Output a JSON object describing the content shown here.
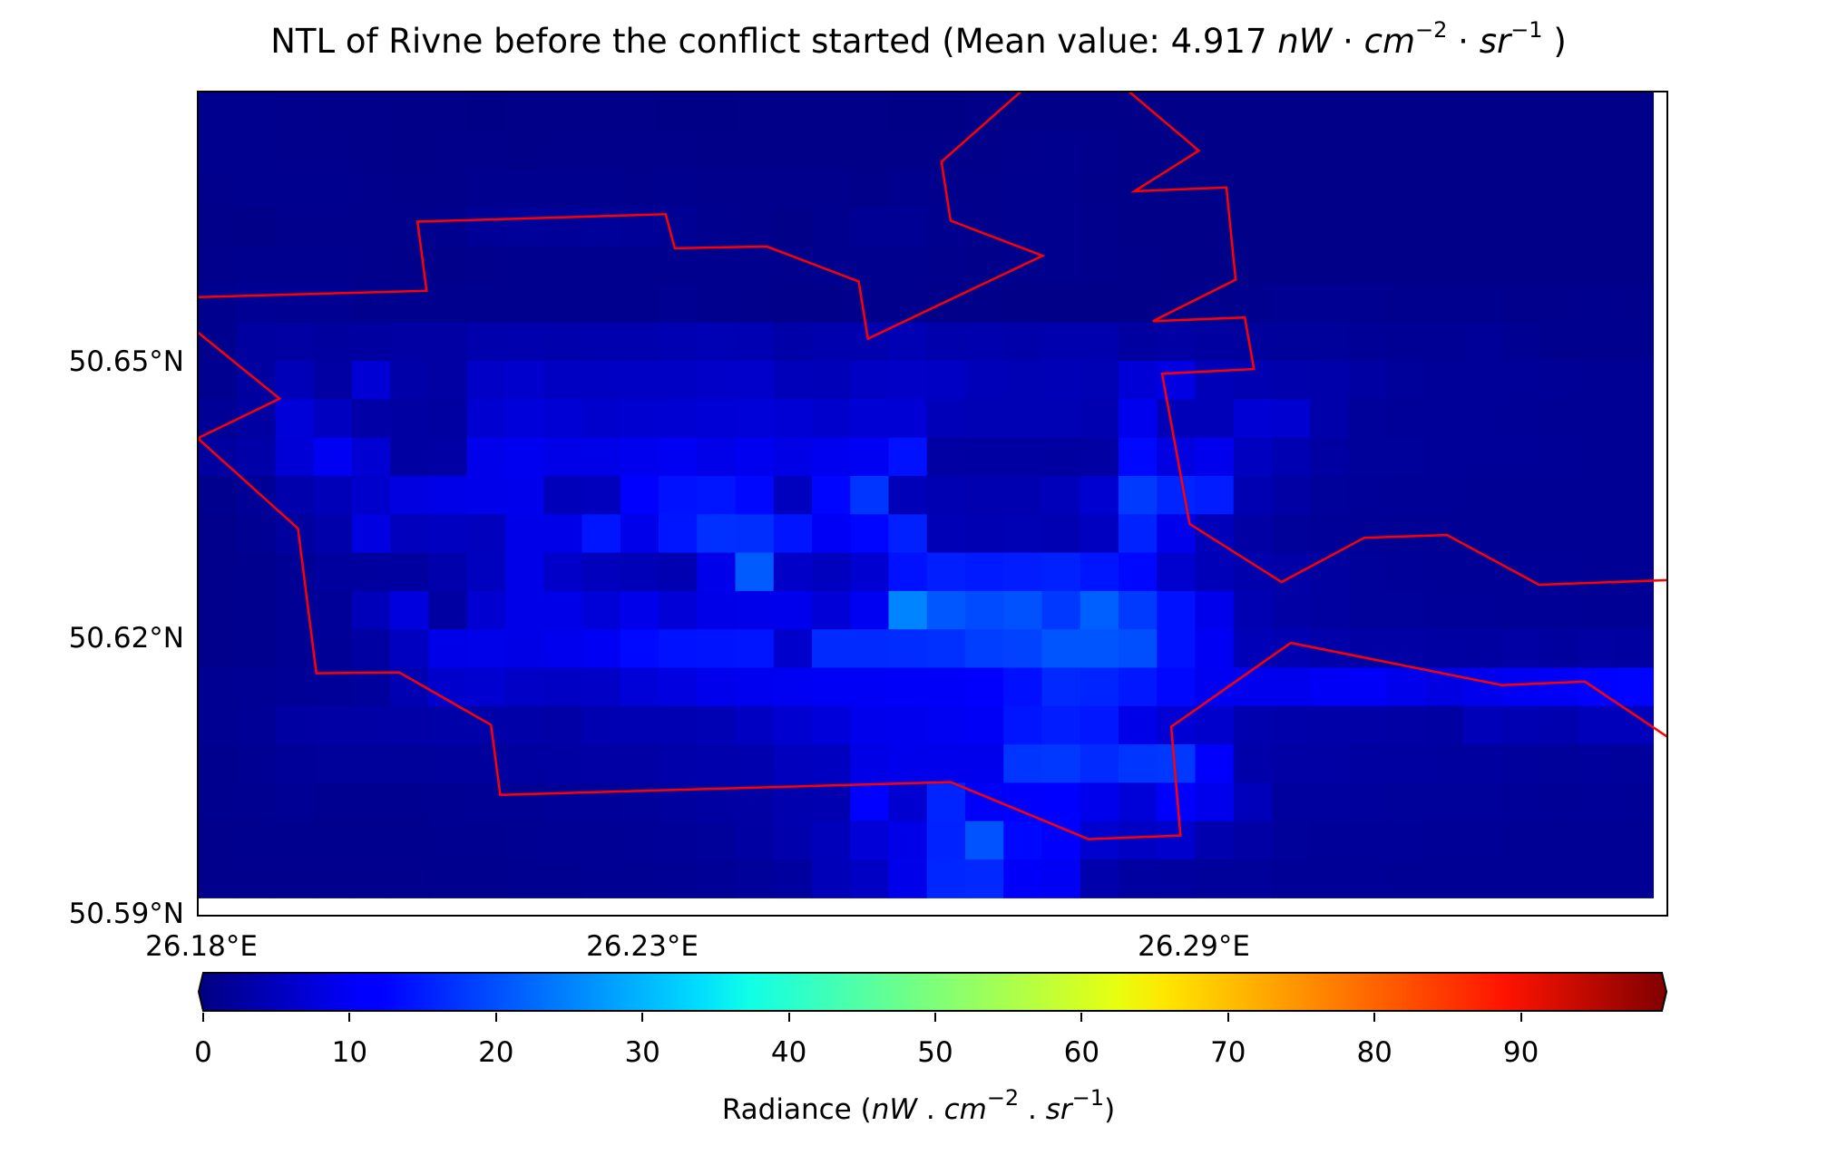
{
  "title": {
    "prefix": "NTL of Rivne before the conflict started (Mean value: 4.917 ",
    "unit_nW": "nW",
    "unit_dot1": " · ",
    "unit_cm": "cm",
    "unit_cm_exp": "−2",
    "unit_dot2": " · ",
    "unit_sr": "sr",
    "unit_sr_exp": "−1",
    "suffix": " )"
  },
  "map": {
    "y_ticks": [
      "50.65°N",
      "50.62°N",
      "50.59°N"
    ],
    "x_ticks": [
      "26.18°E",
      "26.23°E",
      "26.29°E"
    ],
    "boundary_color": "#ff0000",
    "colormap": "jet",
    "pixel_values": [
      [
        1.5,
        1.5,
        1.2,
        1.0,
        1.0,
        0.8,
        0.8,
        0.7,
        0.8,
        0.8,
        0.8,
        0.8,
        0.7,
        0.7,
        0.8,
        0.8,
        0.8,
        0.8,
        0.7,
        0.7,
        0.8,
        0.8,
        0.8,
        0.9,
        0.9,
        0.8,
        0.8,
        0.8,
        0.8,
        0.8,
        0.8,
        0.8,
        0.8,
        0.8,
        0.8,
        0.8,
        0.8,
        0.8
      ],
      [
        1.5,
        1.5,
        1.3,
        1.2,
        1.0,
        0.8,
        1.0,
        1.0,
        0.9,
        1.0,
        1.0,
        1.0,
        1.0,
        0.9,
        0.9,
        0.8,
        0.8,
        0.8,
        0.9,
        0.9,
        1.0,
        1.2,
        1.5,
        1.2,
        0.9,
        0.8,
        0.8,
        0.8,
        0.8,
        0.8,
        0.8,
        0.8,
        0.8,
        0.8,
        0.8,
        0.8,
        0.8,
        0.8
      ],
      [
        1.3,
        1.5,
        1.5,
        1.5,
        1.2,
        1.0,
        1.0,
        1.4,
        1.4,
        1.4,
        1.4,
        1.3,
        1.5,
        1.2,
        1.2,
        1.2,
        1.2,
        1.0,
        1.5,
        1.2,
        1.2,
        1.5,
        1.5,
        1.0,
        0.9,
        0.8,
        0.8,
        0.8,
        0.8,
        0.8,
        0.8,
        0.8,
        0.8,
        0.8,
        0.8,
        0.8,
        0.8,
        0.8
      ],
      [
        1.0,
        0.8,
        1.2,
        1.2,
        1.2,
        1.2,
        1.5,
        2.5,
        2.6,
        2.5,
        2.7,
        2.4,
        2.0,
        1.5,
        1.2,
        0.8,
        1.5,
        2.0,
        2.1,
        1.5,
        1.2,
        1.5,
        1.4,
        1.2,
        0.9,
        0.8,
        0.8,
        0.8,
        0.8,
        0.8,
        0.8,
        0.8,
        0.8,
        0.8,
        0.8,
        0.8,
        0.8,
        0.8
      ],
      [
        1.2,
        1.5,
        1.5,
        1.5,
        1.2,
        1.0,
        1.0,
        1.2,
        1.5,
        1.5,
        1.5,
        1.5,
        1.5,
        1.5,
        1.5,
        1.2,
        1.5,
        1.5,
        1.5,
        1.2,
        1.0,
        1.2,
        1.5,
        1.2,
        1.0,
        0.8,
        0.8,
        0.8,
        0.8,
        0.8,
        0.8,
        0.8,
        0.8,
        0.8,
        0.8,
        0.8,
        0.8,
        0.8
      ],
      [
        1.5,
        2.0,
        1.8,
        1.8,
        1.5,
        1.5,
        1.5,
        1.5,
        1.5,
        1.5,
        1.5,
        1.5,
        1.8,
        1.5,
        1.2,
        1.0,
        1.0,
        1.2,
        1.2,
        1.0,
        1.0,
        0.9,
        0.9,
        0.9,
        0.9,
        1.0,
        1.2,
        1.4,
        1.8,
        1.8,
        1.6,
        1.5,
        1.5,
        1.5,
        1.2,
        1.2,
        1.5,
        1.2
      ],
      [
        1.5,
        3.2,
        3.5,
        3.0,
        3.2,
        3.5,
        3.5,
        4.5,
        4.7,
        4.4,
        4.6,
        4.6,
        5.0,
        5.2,
        5.0,
        4.0,
        4.6,
        4.6,
        5.2,
        4.5,
        4.6,
        4.2,
        4.6,
        4.6,
        3.2,
        3.6,
        3.2,
        2.8,
        2.6,
        2.6,
        2.2,
        2.0,
        2.0,
        2.4,
        1.8,
        1.5,
        1.5,
        1.5
      ],
      [
        1.6,
        3.3,
        5.5,
        3.5,
        8.4,
        4.0,
        3.5,
        7.0,
        7.5,
        6.6,
        6.5,
        6.7,
        6.7,
        7.2,
        7.3,
        5.8,
        5.6,
        6.7,
        6.9,
        6.7,
        5.5,
        5.2,
        5.4,
        5.2,
        8.5,
        9.8,
        5.5,
        5.0,
        4.4,
        4.3,
        3.4,
        2.6,
        2.4,
        2.4,
        2.5,
        2.3,
        2.0,
        2.0
      ],
      [
        2.2,
        3.4,
        8.8,
        6.3,
        3.8,
        3.4,
        3.2,
        8.0,
        9.0,
        8.3,
        7.6,
        8.0,
        8.2,
        8.5,
        8.8,
        8.3,
        7.5,
        8.3,
        8.3,
        5.6,
        5.2,
        5.2,
        5.2,
        4.8,
        10.8,
        5.6,
        5.6,
        8.3,
        8.0,
        4.2,
        2.6,
        2.4,
        2.4,
        2.4,
        2.3,
        2.0,
        2.0,
        2.0
      ],
      [
        3.2,
        4.0,
        8.5,
        11.3,
        8.2,
        3.4,
        3.6,
        10.4,
        11.0,
        10.2,
        10.2,
        10.8,
        11.2,
        10.3,
        11.1,
        10.0,
        11.1,
        11.2,
        14.2,
        3.5,
        3.4,
        3.4,
        3.3,
        3.5,
        13.2,
        9.5,
        10.8,
        6.3,
        5.0,
        3.4,
        2.6,
        2.6,
        2.4,
        2.4,
        2.4,
        2.2,
        2.0,
        2.0
      ],
      [
        1.4,
        2.3,
        4.4,
        5.6,
        7.6,
        9.5,
        10.2,
        10.4,
        10.6,
        5.8,
        6.0,
        12.4,
        14.2,
        14.6,
        13.2,
        6.2,
        13.0,
        17.6,
        5.5,
        5.0,
        4.8,
        4.8,
        5.8,
        8.0,
        18.2,
        16.0,
        15.2,
        5.0,
        3.6,
        2.6,
        2.4,
        2.2,
        2.2,
        2.0,
        2.0,
        2.0,
        2.0,
        2.0
      ],
      [
        1.2,
        1.8,
        3.0,
        4.3,
        9.5,
        6.0,
        6.3,
        6.0,
        10.2,
        10.2,
        14.6,
        10.5,
        14.6,
        17.2,
        17.0,
        14.5,
        11.6,
        13.0,
        15.6,
        5.3,
        5.0,
        5.2,
        5.0,
        6.3,
        15.8,
        10.6,
        5.8,
        3.6,
        2.6,
        2.4,
        2.2,
        2.0,
        2.0,
        2.0,
        2.0,
        2.0,
        2.0,
        2.0
      ],
      [
        1.2,
        1.5,
        2.0,
        3.0,
        3.0,
        3.2,
        4.5,
        6.2,
        10.2,
        7.2,
        6.0,
        5.5,
        5.0,
        10.4,
        21.4,
        7.2,
        6.2,
        8.0,
        14.2,
        15.4,
        15.0,
        15.2,
        15.6,
        14.6,
        13.2,
        7.8,
        5.5,
        4.5,
        3.8,
        3.2,
        2.6,
        2.4,
        2.2,
        2.2,
        2.2,
        2.2,
        2.0,
        2.0
      ],
      [
        1.2,
        1.5,
        2.0,
        2.4,
        5.8,
        9.4,
        3.4,
        8.0,
        10.2,
        10.2,
        8.8,
        10.5,
        8.6,
        10.2,
        10.4,
        10.6,
        8.6,
        11.2,
        25.4,
        21.0,
        19.8,
        20.4,
        18.0,
        21.8,
        18.2,
        14.2,
        10.6,
        5.0,
        3.6,
        3.2,
        2.6,
        2.6,
        2.4,
        2.4,
        2.2,
        2.2,
        2.0,
        2.0
      ],
      [
        1.2,
        1.4,
        2.0,
        2.2,
        3.4,
        6.3,
        10.2,
        10.3,
        10.0,
        10.8,
        11.4,
        13.4,
        14.2,
        14.4,
        14.6,
        7.6,
        16.6,
        16.6,
        16.8,
        17.2,
        18.6,
        19.0,
        20.8,
        20.8,
        20.2,
        14.2,
        11.4,
        5.6,
        5.0,
        4.2,
        3.6,
        3.6,
        3.4,
        3.2,
        3.6,
        3.0,
        3.5,
        3.2
      ],
      [
        1.8,
        2.0,
        2.2,
        2.4,
        2.8,
        5.0,
        7.6,
        8.0,
        7.0,
        6.8,
        7.0,
        8.8,
        9.6,
        10.6,
        11.0,
        11.2,
        11.6,
        11.6,
        11.8,
        12.0,
        12.2,
        14.0,
        16.4,
        16.0,
        14.8,
        13.2,
        11.2,
        10.8,
        10.8,
        11.6,
        12.0,
        10.6,
        9.8,
        10.6,
        11.2,
        11.6,
        12.6,
        12.8
      ],
      [
        1.8,
        2.2,
        3.4,
        3.6,
        3.6,
        3.8,
        4.0,
        4.0,
        4.0,
        3.8,
        4.8,
        5.0,
        5.0,
        5.2,
        6.6,
        8.0,
        9.0,
        10.6,
        10.8,
        11.2,
        11.6,
        14.6,
        15.2,
        14.8,
        10.2,
        8.4,
        7.6,
        4.6,
        4.2,
        4.0,
        3.8,
        3.6,
        3.4,
        5.6,
        5.0,
        4.6,
        5.8,
        5.8
      ],
      [
        1.5,
        1.8,
        2.4,
        2.6,
        2.6,
        2.6,
        2.8,
        2.8,
        3.2,
        3.4,
        3.6,
        3.6,
        4.2,
        4.4,
        4.6,
        6.0,
        6.4,
        10.0,
        10.6,
        10.6,
        10.6,
        17.6,
        18.0,
        16.6,
        17.6,
        18.0,
        12.2,
        4.2,
        3.6,
        3.6,
        3.2,
        3.2,
        3.0,
        3.0,
        2.8,
        2.6,
        2.8,
        2.6
      ],
      [
        1.4,
        1.6,
        2.0,
        1.6,
        1.6,
        1.6,
        1.8,
        2.0,
        2.0,
        2.4,
        2.4,
        2.6,
        3.0,
        3.4,
        3.6,
        4.6,
        4.8,
        12.6,
        8.0,
        16.0,
        11.8,
        12.2,
        12.4,
        10.6,
        8.8,
        12.2,
        10.6,
        5.8,
        3.0,
        3.0,
        2.8,
        2.6,
        2.6,
        2.6,
        2.4,
        2.2,
        2.4,
        2.2
      ],
      [
        1.2,
        1.4,
        1.4,
        1.4,
        1.4,
        1.4,
        1.6,
        1.6,
        1.8,
        2.0,
        2.0,
        2.2,
        2.4,
        2.6,
        3.4,
        4.4,
        5.8,
        8.6,
        10.2,
        15.8,
        20.6,
        13.2,
        12.2,
        7.8,
        6.8,
        7.6,
        4.6,
        3.6,
        2.6,
        2.4,
        2.4,
        2.4,
        2.2,
        2.2,
        2.0,
        2.0,
        2.0,
        2.0
      ],
      [
        1.2,
        1.2,
        1.2,
        1.2,
        1.2,
        1.2,
        1.4,
        1.4,
        1.6,
        1.6,
        1.8,
        1.8,
        2.0,
        2.2,
        2.6,
        3.0,
        5.6,
        6.8,
        10.4,
        16.2,
        16.4,
        12.0,
        11.4,
        4.4,
        3.2,
        3.0,
        2.6,
        2.6,
        2.2,
        2.2,
        2.2,
        2.0,
        2.0,
        2.0,
        2.0,
        2.0,
        2.0,
        2.0
      ]
    ],
    "boundaries": [
      [
        [
          26.18,
          50.6571
        ],
        [
          26.205,
          50.6578
        ],
        [
          26.204,
          50.6653
        ],
        [
          26.231,
          50.6661
        ],
        [
          26.232,
          50.6624
        ],
        [
          26.242,
          50.6626
        ],
        [
          26.252,
          50.6588
        ],
        [
          26.253,
          50.6526
        ],
        [
          26.272,
          50.6616
        ],
        [
          26.262,
          50.6654
        ],
        [
          26.261,
          50.6718
        ],
        [
          26.271,
          50.6806
        ],
        [
          26.28,
          50.6806
        ],
        [
          26.289,
          50.673
        ],
        [
          26.282,
          50.6686
        ],
        [
          26.292,
          50.669
        ],
        [
          26.293,
          50.659
        ],
        [
          26.284,
          50.6545
        ],
        [
          26.294,
          50.6549
        ],
        [
          26.295,
          50.6493
        ],
        [
          26.285,
          50.6488
        ],
        [
          26.288,
          50.6325
        ],
        [
          26.298,
          50.6262
        ],
        [
          26.307,
          50.631
        ],
        [
          26.316,
          50.6313
        ],
        [
          26.326,
          50.6259
        ],
        [
          26.344,
          50.6264
        ]
      ],
      [
        [
          26.18,
          50.6533
        ],
        [
          26.189,
          50.6461
        ],
        [
          26.18,
          50.6418
        ],
        [
          26.191,
          50.632
        ],
        [
          26.193,
          50.6163
        ],
        [
          26.202,
          50.6164
        ],
        [
          26.212,
          50.6107
        ],
        [
          26.213,
          50.6031
        ],
        [
          26.262,
          50.6045
        ],
        [
          26.277,
          50.5983
        ],
        [
          26.287,
          50.5987
        ],
        [
          26.286,
          50.6105
        ],
        [
          26.299,
          50.6196
        ],
        [
          26.322,
          50.615
        ],
        [
          26.331,
          50.6154
        ],
        [
          26.344,
          50.6094
        ],
        [
          26.355,
          50.6097
        ]
      ]
    ]
  },
  "colorbar": {
    "ticks": [
      "0",
      "10",
      "20",
      "30",
      "40",
      "50",
      "60",
      "70",
      "80",
      "90"
    ],
    "label_prefix": "Radiance (",
    "label_nW": "nW",
    "label_dot1": " . ",
    "label_cm": "cm",
    "label_cm_exp": "−2",
    "label_dot2": " . ",
    "label_sr": "sr",
    "label_sr_exp": "−1",
    "label_suffix": ")",
    "min": 0,
    "max": 100
  }
}
